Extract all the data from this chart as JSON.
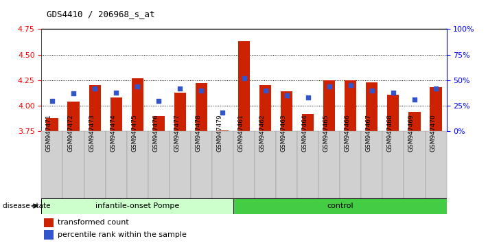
{
  "title": "GDS4410 / 206968_s_at",
  "samples": [
    "GSM947471",
    "GSM947472",
    "GSM947473",
    "GSM947474",
    "GSM947475",
    "GSM947476",
    "GSM947477",
    "GSM947478",
    "GSM947479",
    "GSM947461",
    "GSM947462",
    "GSM947463",
    "GSM947464",
    "GSM947465",
    "GSM947466",
    "GSM947467",
    "GSM947468",
    "GSM947469",
    "GSM947470"
  ],
  "red_values": [
    3.88,
    4.04,
    4.2,
    4.08,
    4.27,
    3.9,
    4.13,
    4.22,
    3.76,
    4.63,
    4.2,
    4.14,
    3.92,
    4.25,
    4.25,
    4.23,
    4.11,
    3.94,
    4.18
  ],
  "blue_percentiles": [
    30,
    37,
    42,
    38,
    44,
    30,
    42,
    40,
    18,
    52,
    40,
    35,
    33,
    44,
    45,
    40,
    38,
    31,
    42
  ],
  "group1_label": "infantile-onset Pompe",
  "group2_label": "control",
  "group1_count": 9,
  "group2_count": 10,
  "y_min": 3.75,
  "y_max": 4.75,
  "y_ticks": [
    3.75,
    4.0,
    4.25,
    4.5,
    4.75
  ],
  "right_y_ticks": [
    0,
    25,
    50,
    75,
    100
  ],
  "right_y_tick_labels": [
    "0%",
    "25%",
    "50%",
    "75%",
    "100%"
  ],
  "bar_color": "#cc2200",
  "blue_color": "#3355cc",
  "group1_bg": "#ccffcc",
  "group2_bg": "#44cc44",
  "sample_bg": "#d0d0d0",
  "legend_red_label": "transformed count",
  "legend_blue_label": "percentile rank within the sample",
  "disease_state_label": "disease state",
  "bar_width": 0.55,
  "base_value": 3.75
}
